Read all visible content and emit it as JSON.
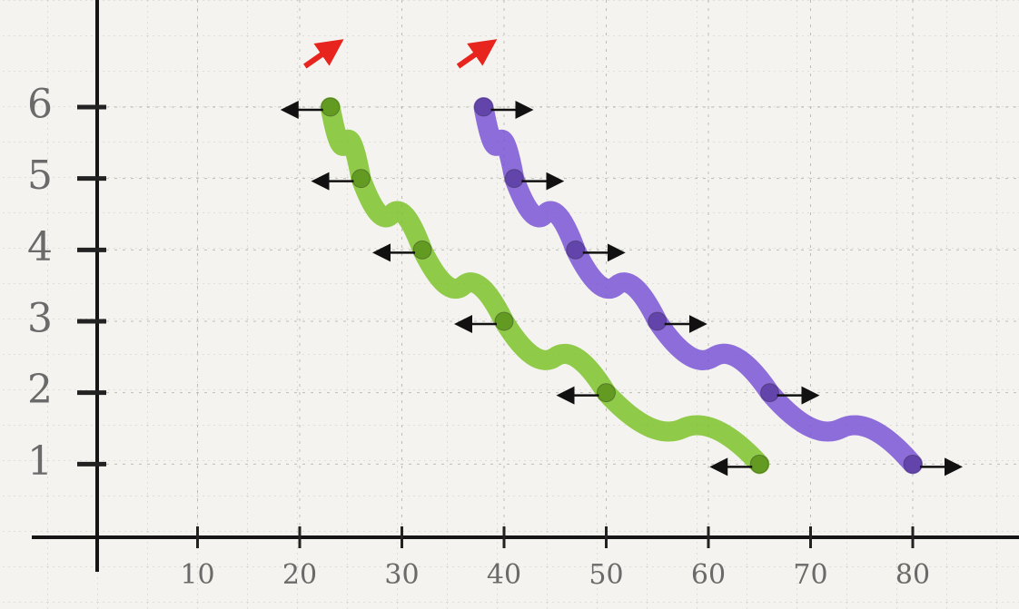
{
  "chart_data": {
    "type": "line",
    "series": [
      {
        "name": "green",
        "color": "#7cc22a",
        "x": [
          23,
          26,
          32,
          40,
          50,
          65
        ],
        "values": [
          6,
          5,
          4,
          3,
          2,
          1
        ]
      },
      {
        "name": "purple",
        "color": "#7a55d6",
        "x": [
          38,
          41,
          47,
          55,
          66,
          80
        ],
        "values": [
          6,
          5,
          4,
          3,
          2,
          1
        ]
      }
    ],
    "xlim": [
      0,
      90
    ],
    "xticks": [
      10,
      20,
      30,
      40,
      50,
      60,
      70,
      80
    ],
    "ylim": [
      0,
      7.5
    ],
    "yticks": [
      1,
      2,
      3,
      4,
      5,
      6
    ],
    "grid": true
  }
}
